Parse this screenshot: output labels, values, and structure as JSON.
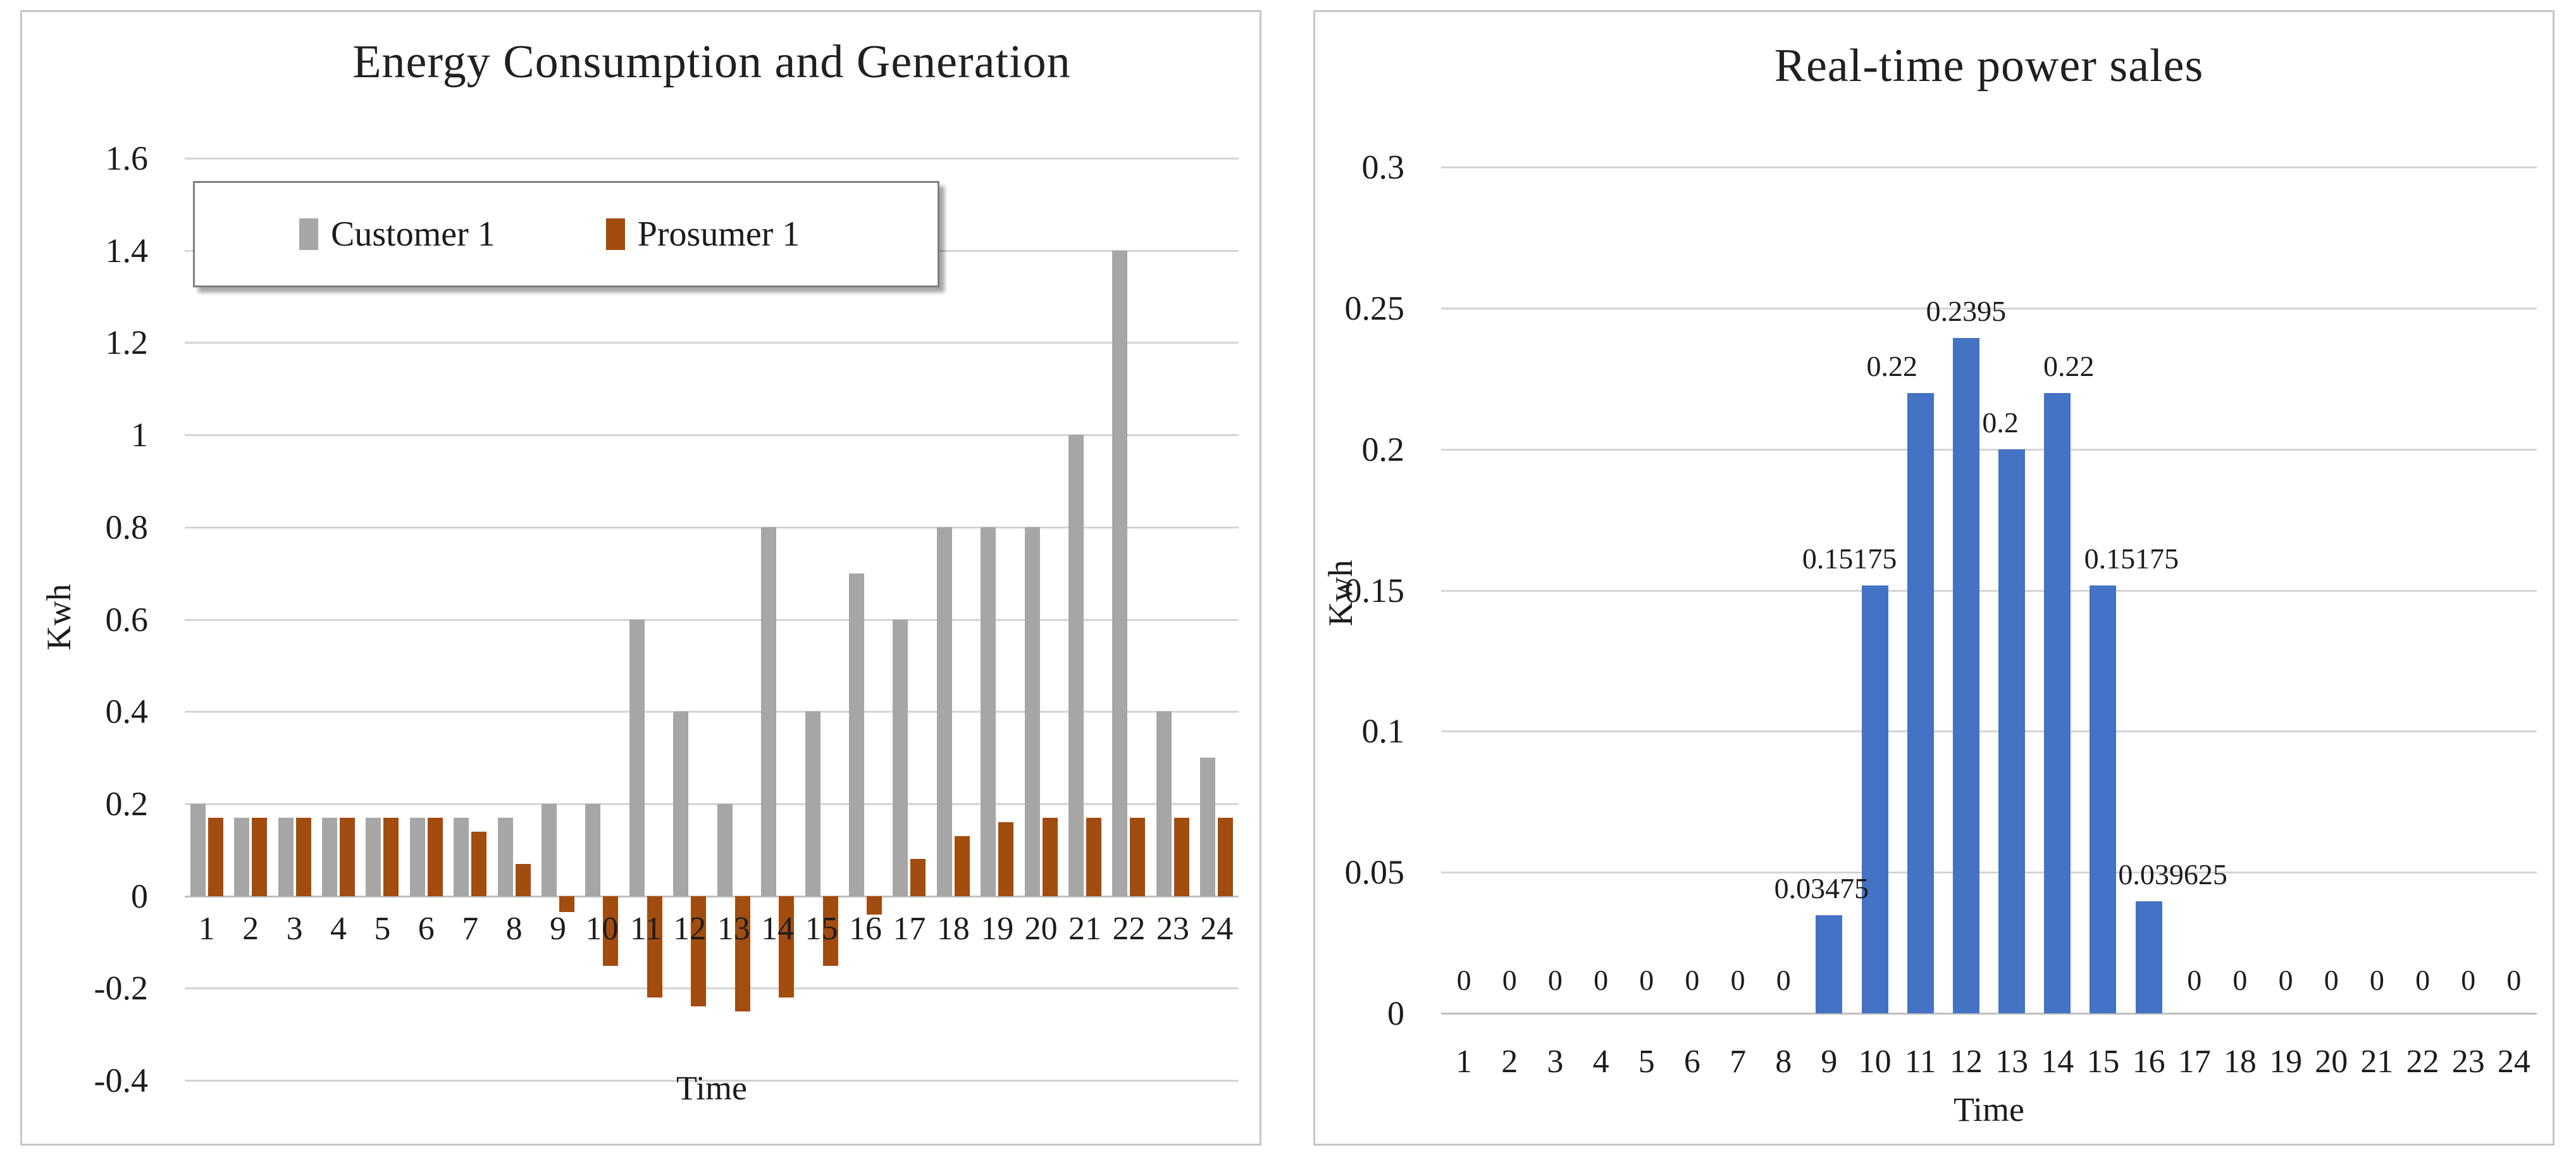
{
  "left_chart": {
    "title": "Energy Consumption and Generation",
    "y_axis_title": "Kwh",
    "x_axis_title": "Time",
    "legend_items": [
      {
        "label": "Customer 1",
        "color": "#A6A6A6"
      },
      {
        "label": "Prosumer 1",
        "color": "#A24C10"
      }
    ],
    "y_ticks": [
      "1.6",
      "1.4",
      "1.2",
      "1",
      "0.8",
      "0.6",
      "0.4",
      "0.2",
      "0",
      "-0.2",
      "-0.4"
    ]
  },
  "right_chart": {
    "title": "Real-time power sales",
    "y_axis_title": "Kwh",
    "x_axis_title": "Time",
    "bar_color": "#4472C4",
    "y_ticks": [
      "0.3",
      "0.25",
      "0.2",
      "0.15",
      "0.1",
      "0.05",
      "0"
    ]
  },
  "chart_data": [
    {
      "type": "bar",
      "title": "Energy Consumption and Generation",
      "xlabel": "Time",
      "ylabel": "Kwh",
      "categories": [
        "1",
        "2",
        "3",
        "4",
        "5",
        "6",
        "7",
        "8",
        "9",
        "10",
        "11",
        "12",
        "13",
        "14",
        "15",
        "16",
        "17",
        "18",
        "19",
        "20",
        "21",
        "22",
        "23",
        "24"
      ],
      "series": [
        {
          "name": "Customer 1",
          "color": "#A6A6A6",
          "values": [
            0.2,
            0.17,
            0.17,
            0.17,
            0.17,
            0.17,
            0.17,
            0.17,
            0.2,
            0.2,
            0.6,
            0.4,
            0.2,
            0.8,
            0.4,
            0.7,
            0.6,
            0.8,
            0.8,
            0.8,
            1,
            1.4,
            0.4,
            0.3
          ]
        },
        {
          "name": "Prosumer 1",
          "color": "#A24C10",
          "values": [
            0.17,
            0.17,
            0.17,
            0.17,
            0.17,
            0.17,
            0.14,
            0.07,
            -0.035,
            -0.152,
            -0.22,
            -0.24,
            -0.25,
            -0.22,
            -0.152,
            -0.04,
            0.08,
            0.13,
            0.16,
            0.17,
            0.17,
            0.17,
            0.17,
            0.17
          ]
        }
      ],
      "ylim": [
        -0.4,
        1.6
      ],
      "ytick_step": 0.2,
      "grid": true,
      "legend_position": "top-inside"
    },
    {
      "type": "bar",
      "title": "Real-time power sales",
      "xlabel": "Time",
      "ylabel": "Kwh",
      "categories": [
        "1",
        "2",
        "3",
        "4",
        "5",
        "6",
        "7",
        "8",
        "9",
        "10",
        "11",
        "12",
        "13",
        "14",
        "15",
        "16",
        "17",
        "18",
        "19",
        "20",
        "21",
        "22",
        "23",
        "24"
      ],
      "series": [
        {
          "name": "Real-time power sales",
          "color": "#4472C4",
          "values": [
            0,
            0,
            0,
            0,
            0,
            0,
            0,
            0,
            0.03475,
            0.15175,
            0.22,
            0.2395,
            0.2,
            0.22,
            0.15175,
            0.039625,
            0,
            0,
            0,
            0,
            0,
            0,
            0,
            0
          ]
        }
      ],
      "data_labels": [
        "0",
        "0",
        "0",
        "0",
        "0",
        "0",
        "0",
        "0",
        "0.03475",
        "0.15175",
        "0.22",
        "0.2395",
        "0.2",
        "0.22",
        "0.15175",
        "0.039625",
        "0",
        "0",
        "0",
        "0",
        "0",
        "0",
        "0",
        "0"
      ],
      "ylim": [
        0,
        0.3
      ],
      "ytick_step": 0.05,
      "grid": true,
      "legend_position": "none"
    }
  ]
}
